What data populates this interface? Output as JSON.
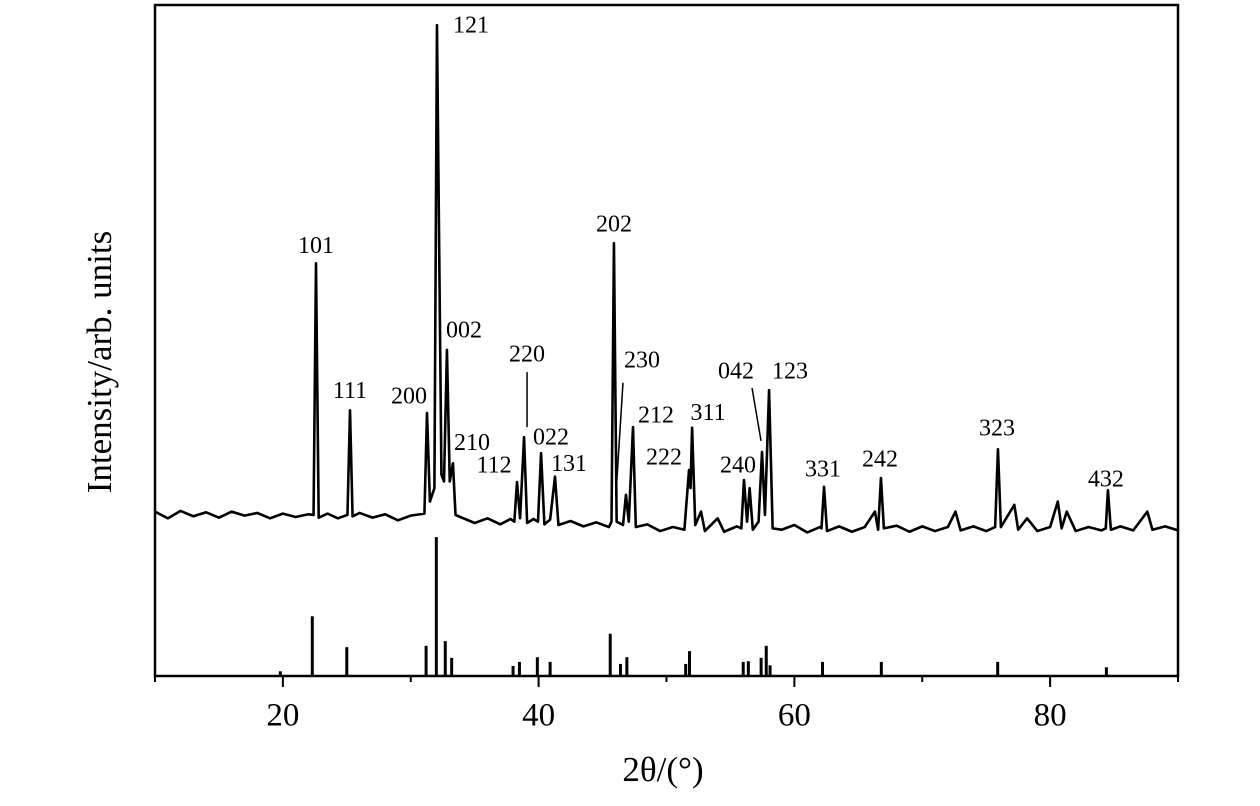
{
  "chart_data": {
    "type": "line",
    "x_label": "2θ/(°)",
    "y_label": "Intensity/arb. units",
    "xlim": [
      10,
      90
    ],
    "ylim": [
      0,
      100
    ],
    "xticks": [
      20,
      40,
      60,
      80
    ],
    "xminorticks": [
      10,
      30,
      50,
      70,
      90
    ],
    "series": [
      {
        "type": "line",
        "color": "#000000",
        "x": [
          10,
          11,
          12,
          13,
          14,
          15,
          16,
          17,
          18,
          19,
          20,
          21,
          22,
          22.4,
          22.59,
          22.8,
          23.5,
          24.3,
          25.05,
          25.25,
          25.45,
          26,
          27,
          28,
          29,
          30,
          31.07,
          31.27,
          31.5,
          31.85,
          32.05,
          32.4,
          32.6,
          32.83,
          33.05,
          33.3,
          33.5,
          34,
          35,
          36,
          37,
          37.8,
          38.1,
          38.31,
          38.55,
          38.86,
          39.1,
          39.6,
          39.95,
          40.19,
          40.45,
          40.9,
          41.28,
          41.55,
          42.5,
          43.5,
          44.5,
          45.5,
          45.7,
          45.89,
          46.1,
          46.6,
          46.83,
          47.05,
          47.38,
          47.6,
          48.5,
          49.5,
          50.5,
          51.4,
          51.76,
          51.88,
          52,
          52.25,
          52.7,
          53,
          54,
          54.5,
          55.5,
          55.85,
          56.06,
          56.3,
          56.5,
          56.75,
          57.2,
          57.47,
          57.7,
          58.02,
          58.3,
          59,
          60,
          61,
          62,
          62.12,
          62.32,
          62.55,
          63.5,
          64.5,
          65.5,
          66.3,
          66.55,
          66.77,
          67,
          68,
          69,
          70,
          71,
          72,
          72.6,
          73,
          74,
          75,
          75.7,
          75.92,
          76.15,
          77.2,
          77.5,
          78.2,
          79,
          80,
          80.6,
          80.9,
          81.3,
          82,
          83,
          84,
          84.35,
          84.52,
          84.75,
          85.5,
          86.5,
          87.6,
          88,
          89,
          90
        ],
        "values": [
          24.5,
          23.5,
          24.6,
          23.8,
          24.4,
          23.6,
          24.5,
          23.9,
          24.3,
          23.5,
          24.2,
          23.7,
          24.1,
          24,
          61.5,
          23.6,
          24.2,
          23.5,
          24,
          39.6,
          23.8,
          24.3,
          23.6,
          24.1,
          23.2,
          23.9,
          24.2,
          39.2,
          26,
          28,
          97,
          30,
          29,
          48.6,
          29,
          31.7,
          24,
          23.6,
          22.8,
          23.5,
          22.6,
          23.4,
          23,
          28.9,
          23.5,
          35.6,
          22.8,
          23.4,
          23,
          33.2,
          22.6,
          23.3,
          29.7,
          22.5,
          23.1,
          22.3,
          22.9,
          22.2,
          23,
          64.5,
          23,
          22.5,
          27,
          23,
          37.1,
          22.2,
          22.6,
          21.6,
          22.2,
          21.8,
          30.7,
          28,
          37,
          22.5,
          24.5,
          21.6,
          23.5,
          21.5,
          22.3,
          22,
          29.2,
          23,
          28,
          21.8,
          23,
          33.4,
          24,
          42.6,
          22,
          21.8,
          22.5,
          21.4,
          22.2,
          22,
          28.2,
          21.6,
          22.3,
          21.5,
          22.2,
          24.5,
          21.8,
          29.5,
          22,
          22.4,
          21.5,
          22.3,
          21.6,
          22.2,
          24.5,
          21.7,
          22.3,
          21.6,
          22.2,
          33.8,
          22.2,
          25.5,
          21.8,
          23.5,
          21.6,
          22.2,
          26,
          22,
          24.5,
          21.6,
          22.2,
          21.7,
          22,
          27.7,
          21.8,
          22.3,
          21.7,
          24.5,
          21.8,
          22.3,
          21.7
        ]
      },
      {
        "type": "stick",
        "color": "#000000",
        "x": [
          19.8,
          22.3,
          25.0,
          31.2,
          32.0,
          32.7,
          33.2,
          38.0,
          38.5,
          39.9,
          40.9,
          45.6,
          46.4,
          46.9,
          51.5,
          51.8,
          56.0,
          56.4,
          57.4,
          57.8,
          58.1,
          62.2,
          66.8,
          75.9,
          84.4
        ],
        "values": [
          0.7,
          8.9,
          4.3,
          4.5,
          20.7,
          5.2,
          2.7,
          1.5,
          2.1,
          2.8,
          2.1,
          6.3,
          1.8,
          2.8,
          1.8,
          3.7,
          2.1,
          2.2,
          2.7,
          4.5,
          1.6,
          2.1,
          2.1,
          2.1,
          1.3
        ]
      }
    ],
    "annotations": [
      {
        "text": "101",
        "x": 22.59,
        "y": 61.5
      },
      {
        "text": "111",
        "x": 25.25,
        "y": 39.6
      },
      {
        "text": "200",
        "x": 31.27,
        "y": 39.2
      },
      {
        "text": "121",
        "x": 32.05,
        "y": 97
      },
      {
        "text": "002",
        "x": 32.83,
        "y": 48.6
      },
      {
        "text": "210",
        "x": 33.3,
        "y": 31.7
      },
      {
        "text": "112",
        "x": 38.31,
        "y": 28.9
      },
      {
        "text": "220",
        "x": 38.86,
        "y": 35.6
      },
      {
        "text": "022",
        "x": 40.19,
        "y": 33.2
      },
      {
        "text": "131",
        "x": 41.28,
        "y": 29.7
      },
      {
        "text": "202",
        "x": 45.89,
        "y": 64.5
      },
      {
        "text": "230",
        "x": 46.83,
        "y": 27
      },
      {
        "text": "212",
        "x": 47.38,
        "y": 37.1
      },
      {
        "text": "222",
        "x": 51.76,
        "y": 30.7
      },
      {
        "text": "311",
        "x": 52,
        "y": 37
      },
      {
        "text": "240",
        "x": 56.06,
        "y": 29.2
      },
      {
        "text": "042",
        "x": 57.47,
        "y": 33.4
      },
      {
        "text": "123",
        "x": 58.02,
        "y": 42.6
      },
      {
        "text": "331",
        "x": 62.32,
        "y": 28.2
      },
      {
        "text": "242",
        "x": 66.77,
        "y": 29.5
      },
      {
        "text": "323",
        "x": 75.92,
        "y": 33.8
      },
      {
        "text": "432",
        "x": 84.52,
        "y": 27.7
      }
    ]
  }
}
